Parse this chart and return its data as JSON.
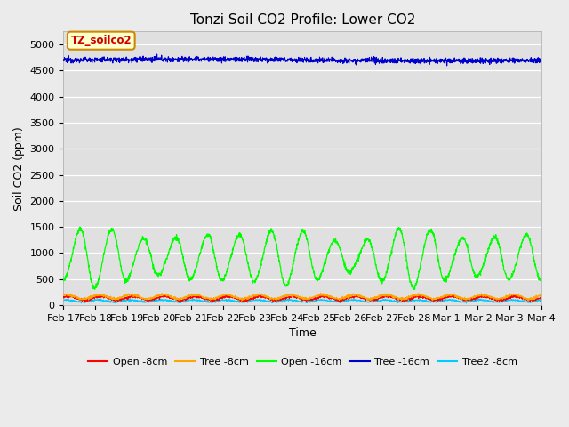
{
  "title": "Tonzi Soil CO2 Profile: Lower CO2",
  "xlabel": "Time",
  "ylabel": "Soil CO2 (ppm)",
  "ylim": [
    0,
    5250
  ],
  "yticks": [
    0,
    500,
    1000,
    1500,
    2000,
    2500,
    3000,
    3500,
    4000,
    4500,
    5000
  ],
  "background_color": "#ebebeb",
  "plot_bg_color": "#e0e0e0",
  "legend_label": "TZ_soilco2",
  "series": {
    "open_8cm": {
      "color": "#ff0000",
      "label": "Open -8cm"
    },
    "tree_8cm": {
      "color": "#ffa500",
      "label": "Tree -8cm"
    },
    "open_16cm": {
      "color": "#00ff00",
      "label": "Open -16cm"
    },
    "tree_16cm": {
      "color": "#0000cc",
      "label": "Tree -16cm"
    },
    "tree2_8cm": {
      "color": "#00ccff",
      "label": "Tree2 -8cm"
    }
  },
  "xtick_labels": [
    "Feb 17",
    "Feb 18",
    "Feb 19",
    "Feb 20",
    "Feb 21",
    "Feb 22",
    "Feb 23",
    "Feb 24",
    "Feb 25",
    "Feb 26",
    "Feb 27",
    "Feb 28",
    "Mar 1",
    "Mar 2",
    "Mar 3",
    "Mar 4"
  ],
  "n_points": 2000,
  "title_fontsize": 11,
  "axis_label_fontsize": 9,
  "tick_fontsize": 8
}
